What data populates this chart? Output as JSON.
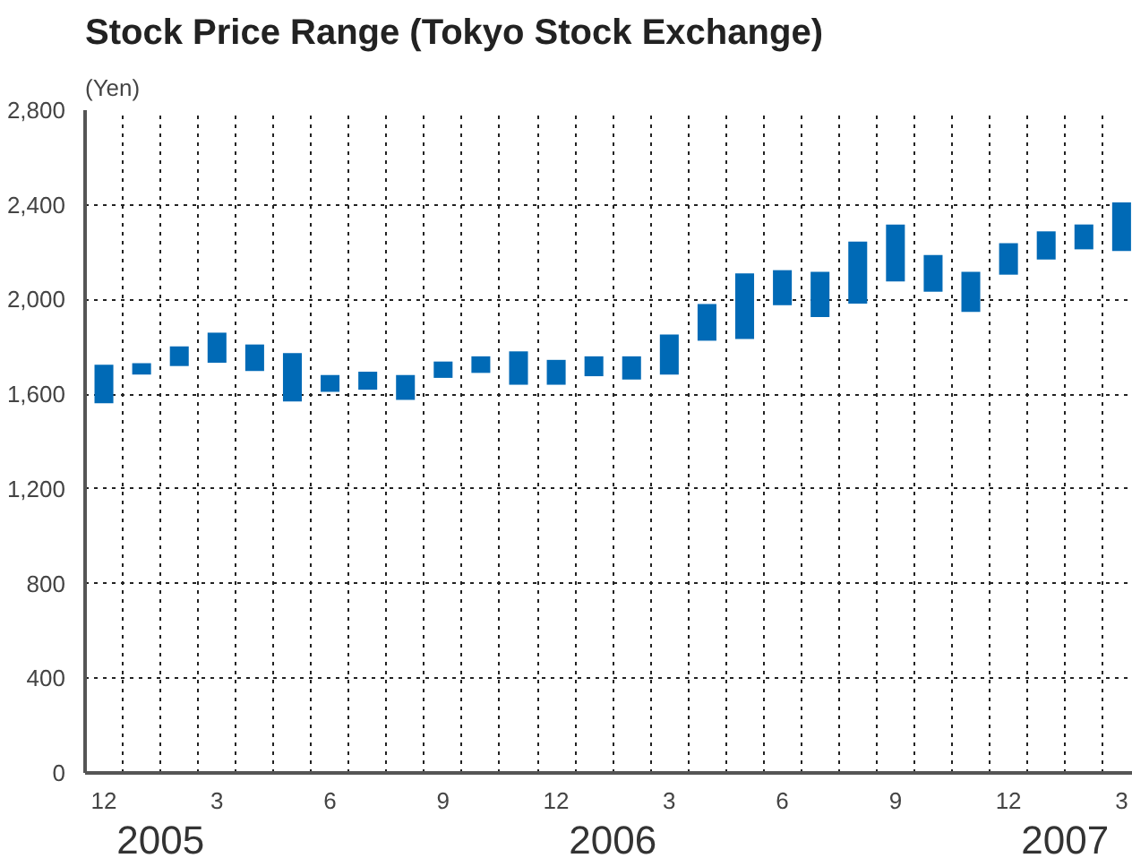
{
  "chart_data": {
    "type": "bar",
    "title": "Stock Price Range (Tokyo Stock Exchange)",
    "ylabel": "(Yen)",
    "categories": [
      "12",
      null,
      null,
      "3",
      null,
      null,
      "6",
      null,
      null,
      "9",
      null,
      null,
      "12",
      null,
      null,
      "3",
      null,
      null,
      "6",
      null,
      null,
      "9",
      null,
      null,
      "12",
      null,
      null,
      "3"
    ],
    "base": [
      1562,
      1683,
      1719,
      1733,
      1698,
      1569,
      1610,
      1619,
      1576,
      1669,
      1690,
      1640,
      1640,
      1676,
      1662,
      1683,
      1826,
      1833,
      1976,
      1926,
      1983,
      2076,
      2033,
      1948,
      2105,
      2169,
      2212,
      2205
    ],
    "values": [
      162,
      48,
      83,
      127,
      112,
      205,
      71,
      76,
      105,
      69,
      70,
      141,
      105,
      84,
      98,
      169,
      155,
      277,
      148,
      191,
      262,
      241,
      155,
      169,
      133,
      119,
      105,
      205
    ],
    "color": "#006ab6",
    "ylim": [
      0,
      2800
    ],
    "yticks": [
      0,
      {
        "value": 400,
        "label": "400"
      },
      {
        "value": 800,
        "label": "800"
      },
      {
        "value": 1200,
        "label": "1,200"
      },
      {
        "value": 1600,
        "label": "1,600"
      },
      {
        "value": 2000,
        "label": "2,000"
      },
      {
        "value": 2400,
        "label": "2,400"
      },
      {
        "value": 2800,
        "label": "2,800"
      }
    ],
    "grid": true,
    "annotations": [
      "2005",
      "2006",
      "2007"
    ]
  }
}
